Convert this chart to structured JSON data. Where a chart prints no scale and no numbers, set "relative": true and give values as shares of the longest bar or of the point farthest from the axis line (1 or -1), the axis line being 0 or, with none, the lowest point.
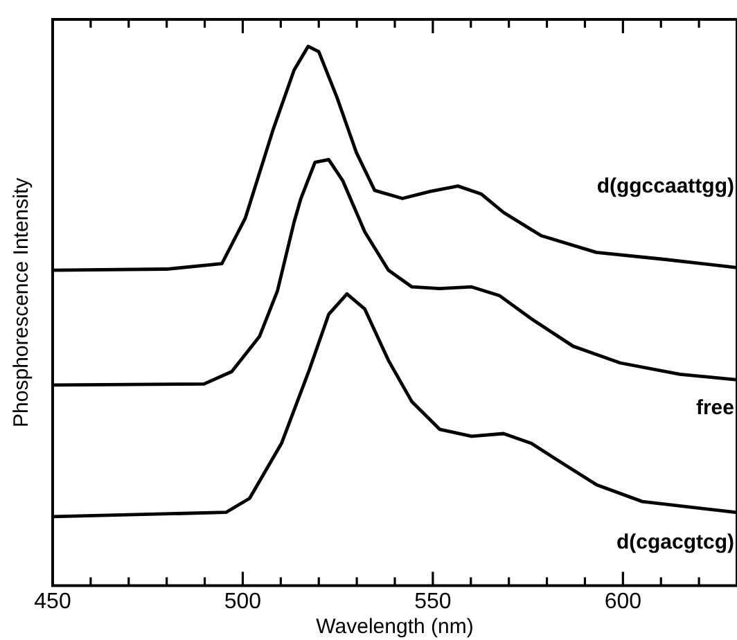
{
  "chart_data": {
    "type": "line",
    "xlabel": "Wavelength (nm)",
    "ylabel": "Phosphorescence Intensity",
    "relative": true,
    "xlim": [
      450,
      630
    ],
    "xticks": [
      450,
      {
        "value": 460,
        "label": null
      },
      {
        "value": 470,
        "label": null
      },
      {
        "value": 480,
        "label": null
      },
      {
        "value": 490,
        "label": null
      },
      500,
      {
        "value": 510,
        "label": null
      },
      {
        "value": 520,
        "label": null
      },
      {
        "value": 530,
        "label": null
      },
      {
        "value": 540,
        "label": null
      },
      550,
      {
        "value": 560,
        "label": null
      },
      {
        "value": 570,
        "label": null
      },
      {
        "value": 580,
        "label": null
      },
      {
        "value": 590,
        "label": null
      },
      600,
      {
        "value": 610,
        "label": null
      },
      {
        "value": 620,
        "label": null
      }
    ],
    "grid": false,
    "legend": false,
    "marker": "none",
    "line_style": "solid",
    "series": [
      {
        "name": "d(ggccaattgg)",
        "color": "#000000",
        "x": [
          450,
          480,
          494.5,
          500.7,
          508,
          513.5,
          517.2,
          520,
          524.8,
          529.9,
          534.7,
          542,
          549.3,
          556.6,
          562.8,
          568.6,
          578.5,
          593,
          611,
          629.6
        ],
        "values": [
          0.585,
          0.587,
          0.597,
          0.682,
          0.846,
          0.956,
          1,
          0.99,
          0.905,
          0.803,
          0.733,
          0.718,
          0.731,
          0.741,
          0.726,
          0.692,
          0.649,
          0.618,
          0.605,
          0.59
        ]
      },
      {
        "name": "free",
        "color": "#000000",
        "x": [
          450,
          489.8,
          497.1,
          504.4,
          509.1,
          513.5,
          515.3,
          519,
          522.6,
          526.3,
          532.1,
          538.3,
          544.5,
          551.8,
          560.2,
          567.5,
          575.9,
          586.9,
          599.3,
          615,
          629.6
        ],
        "values": [
          0.372,
          0.374,
          0.397,
          0.462,
          0.546,
          0.674,
          0.718,
          0.785,
          0.79,
          0.751,
          0.656,
          0.585,
          0.554,
          0.551,
          0.554,
          0.538,
          0.495,
          0.444,
          0.413,
          0.392,
          0.382
        ]
      },
      {
        "name": "d(cgacgtcg)",
        "color": "#000000",
        "x": [
          450,
          495.6,
          501.8,
          510.2,
          517.5,
          522.6,
          527.4,
          532.1,
          538.3,
          544.5,
          551.8,
          560.2,
          568.6,
          575.9,
          583.2,
          593.1,
          605.1,
          629.6
        ],
        "values": [
          0.128,
          0.136,
          0.162,
          0.264,
          0.4,
          0.503,
          0.541,
          0.513,
          0.418,
          0.341,
          0.29,
          0.277,
          0.282,
          0.264,
          0.231,
          0.187,
          0.156,
          0.136
        ]
      }
    ]
  }
}
